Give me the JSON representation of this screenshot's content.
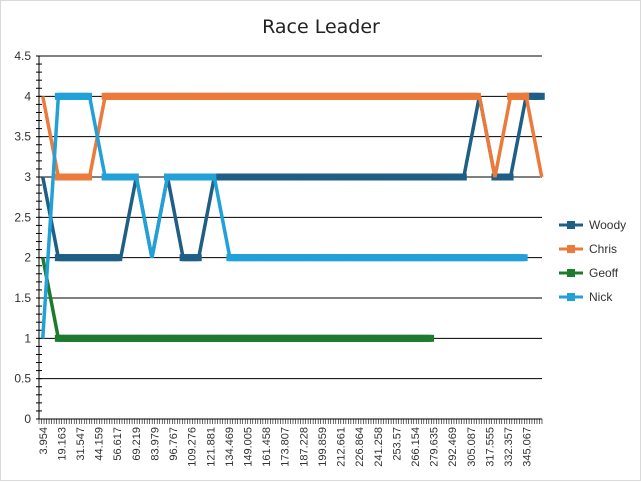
{
  "chart_data": {
    "type": "line",
    "title": "Race Leader",
    "xlabel": "",
    "ylabel": "",
    "ylim": [
      0,
      4.5
    ],
    "y_ticks": [
      "0",
      "0.5",
      "1",
      "1.5",
      "2",
      "2.5",
      "3",
      "3.5",
      "4",
      "4.5"
    ],
    "y_tick_values": [
      0,
      0.5,
      1,
      1.5,
      2,
      2.5,
      3,
      3.5,
      4,
      4.5
    ],
    "x_tick_labels": [
      "3.954",
      "19.163",
      "31.547",
      "44.159",
      "56.617",
      "69.219",
      "83.979",
      "96.767",
      "109.276",
      "121.881",
      "134.469",
      "149.005",
      "161.458",
      "173.807",
      "187.228",
      "199.859",
      "212.661",
      "226.864",
      "241.258",
      "253.57",
      "266.154",
      "279.635",
      "292.469",
      "305.087",
      "317.555",
      "332.357",
      "345.067"
    ],
    "grid": true,
    "legend_position": "right",
    "series": [
      {
        "name": "Woody",
        "color": "#1f5f85",
        "points": [
          [
            0,
            3
          ],
          [
            1,
            2
          ],
          [
            5,
            2
          ],
          [
            6,
            3
          ],
          [
            7,
            2
          ],
          [
            8,
            3
          ],
          [
            9,
            2
          ],
          [
            10,
            2
          ],
          [
            11,
            3
          ],
          [
            27,
            3
          ],
          [
            28,
            4
          ],
          [
            29,
            3
          ],
          [
            30,
            3
          ],
          [
            31,
            4
          ],
          [
            32,
            4
          ]
        ]
      },
      {
        "name": "Chris",
        "color": "#ec7a3a",
        "points": [
          [
            0,
            4
          ],
          [
            1,
            3
          ],
          [
            3,
            3
          ],
          [
            4,
            4
          ],
          [
            28,
            4
          ],
          [
            29,
            3
          ],
          [
            30,
            4
          ],
          [
            31,
            4
          ],
          [
            32,
            3
          ]
        ]
      },
      {
        "name": "Geoff",
        "color": "#1e7a2e",
        "points": [
          [
            0,
            2
          ],
          [
            1,
            1
          ],
          [
            25,
            1
          ]
        ]
      },
      {
        "name": "Nick",
        "color": "#22a0d8",
        "points": [
          [
            0,
            1
          ],
          [
            1,
            4
          ],
          [
            3,
            4
          ],
          [
            4,
            3
          ],
          [
            6,
            3
          ],
          [
            7,
            2
          ],
          [
            8,
            3
          ],
          [
            11,
            3
          ],
          [
            12,
            2
          ],
          [
            31,
            2
          ]
        ]
      }
    ]
  }
}
